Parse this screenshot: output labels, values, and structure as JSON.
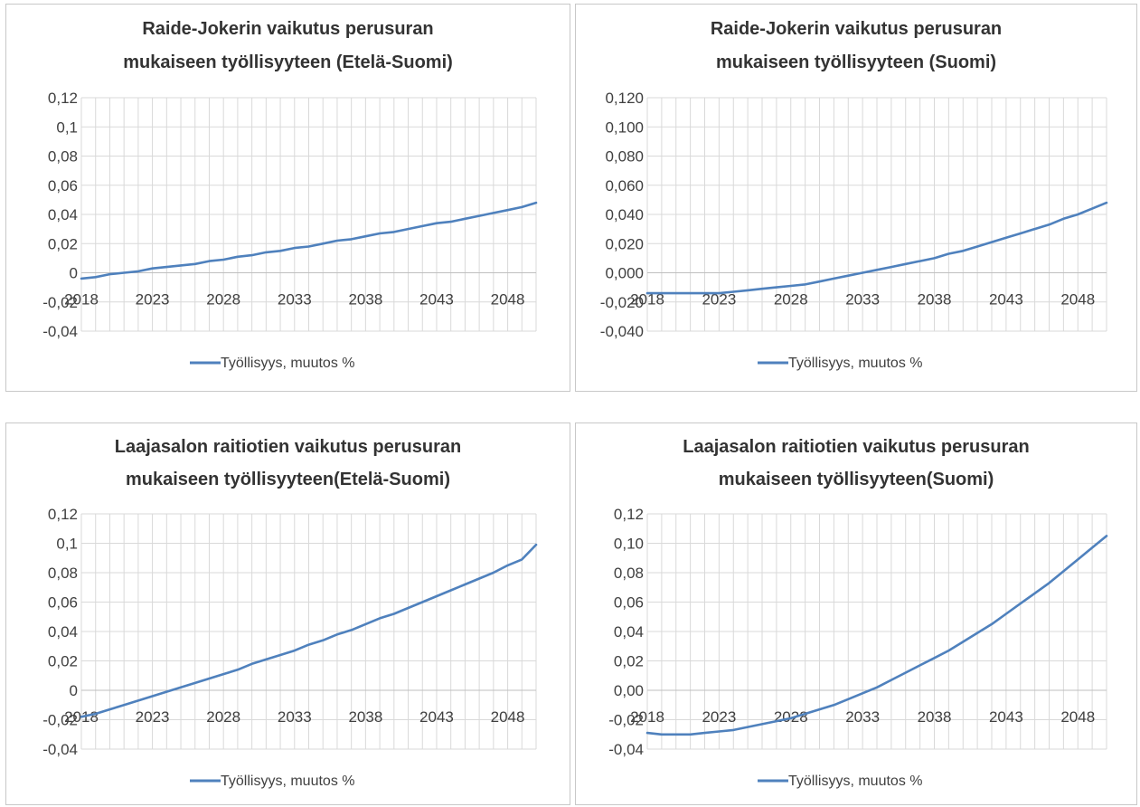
{
  "style": {
    "line_color": "#4f81bd",
    "grid_color": "#d9d9d9",
    "text_color": "#404040",
    "background": "#ffffff"
  },
  "chart_data": [
    {
      "type": "line",
      "title_lines": [
        "Raide-Jokerin vaikutus perusuran",
        "mukaiseen työllisyyteen  (Etelä-Suomi)"
      ],
      "x": [
        2018,
        2019,
        2020,
        2021,
        2022,
        2023,
        2024,
        2025,
        2026,
        2027,
        2028,
        2029,
        2030,
        2031,
        2032,
        2033,
        2034,
        2035,
        2036,
        2037,
        2038,
        2039,
        2040,
        2041,
        2042,
        2043,
        2044,
        2045,
        2046,
        2047,
        2048,
        2049,
        2050
      ],
      "x_tick_labels": [
        "2018",
        "2023",
        "2028",
        "2033",
        "2038",
        "2043",
        "2048"
      ],
      "x_tick_values": [
        2018,
        2023,
        2028,
        2033,
        2038,
        2043,
        2048
      ],
      "y_tick_labels": [
        "0,12",
        "0,1",
        "0,08",
        "0,06",
        "0,04",
        "0,02",
        "0",
        "-0,02",
        "-0,04"
      ],
      "ylim": [
        -0.04,
        0.12
      ],
      "y_step": 0.02,
      "series": [
        {
          "name": "Työllisyys, muutos %",
          "values": [
            -0.004,
            -0.003,
            -0.001,
            0.0,
            0.001,
            0.003,
            0.004,
            0.005,
            0.006,
            0.008,
            0.009,
            0.011,
            0.012,
            0.014,
            0.015,
            0.017,
            0.018,
            0.02,
            0.022,
            0.023,
            0.025,
            0.027,
            0.028,
            0.03,
            0.032,
            0.034,
            0.035,
            0.037,
            0.039,
            0.041,
            0.043,
            0.045,
            0.048
          ]
        }
      ],
      "legend": "bottom",
      "grid": true
    },
    {
      "type": "line",
      "title_lines": [
        "Raide-Jokerin vaikutus perusuran",
        "mukaiseen työllisyyteen  (Suomi)"
      ],
      "x": [
        2018,
        2019,
        2020,
        2021,
        2022,
        2023,
        2024,
        2025,
        2026,
        2027,
        2028,
        2029,
        2030,
        2031,
        2032,
        2033,
        2034,
        2035,
        2036,
        2037,
        2038,
        2039,
        2040,
        2041,
        2042,
        2043,
        2044,
        2045,
        2046,
        2047,
        2048,
        2049,
        2050
      ],
      "x_tick_labels": [
        "2018",
        "2023",
        "2028",
        "2033",
        "2038",
        "2043",
        "2048"
      ],
      "x_tick_values": [
        2018,
        2023,
        2028,
        2033,
        2038,
        2043,
        2048
      ],
      "y_tick_labels": [
        "0,120",
        "0,100",
        "0,080",
        "0,060",
        "0,040",
        "0,020",
        "0,000",
        "-0,020",
        "-0,040"
      ],
      "ylim": [
        -0.04,
        0.12
      ],
      "y_step": 0.02,
      "series": [
        {
          "name": "Työllisyys, muutos %",
          "values": [
            -0.014,
            -0.014,
            -0.014,
            -0.014,
            -0.014,
            -0.014,
            -0.013,
            -0.012,
            -0.011,
            -0.01,
            -0.009,
            -0.008,
            -0.006,
            -0.004,
            -0.002,
            0.0,
            0.002,
            0.004,
            0.006,
            0.008,
            0.01,
            0.013,
            0.015,
            0.018,
            0.021,
            0.024,
            0.027,
            0.03,
            0.033,
            0.037,
            0.04,
            0.044,
            0.048
          ]
        }
      ],
      "legend": "bottom",
      "grid": true
    },
    {
      "type": "line",
      "title_lines": [
        "Laajasalon raitiotien vaikutus perusuran",
        "mukaiseen työllisyyteen(Etelä-Suomi)"
      ],
      "x": [
        2018,
        2019,
        2020,
        2021,
        2022,
        2023,
        2024,
        2025,
        2026,
        2027,
        2028,
        2029,
        2030,
        2031,
        2032,
        2033,
        2034,
        2035,
        2036,
        2037,
        2038,
        2039,
        2040,
        2041,
        2042,
        2043,
        2044,
        2045,
        2046,
        2047,
        2048,
        2049,
        2050
      ],
      "x_tick_labels": [
        "2018",
        "2023",
        "2028",
        "2033",
        "2038",
        "2043",
        "2048"
      ],
      "x_tick_values": [
        2018,
        2023,
        2028,
        2033,
        2038,
        2043,
        2048
      ],
      "y_tick_labels": [
        "0,12",
        "0,1",
        "0,08",
        "0,06",
        "0,04",
        "0,02",
        "0",
        "-0,02",
        "-0,04"
      ],
      "ylim": [
        -0.04,
        0.12
      ],
      "y_step": 0.02,
      "series": [
        {
          "name": "Työllisyys, muutos %",
          "values": [
            -0.018,
            -0.016,
            -0.013,
            -0.01,
            -0.007,
            -0.004,
            -0.001,
            0.002,
            0.005,
            0.008,
            0.011,
            0.014,
            0.018,
            0.021,
            0.024,
            0.027,
            0.031,
            0.034,
            0.038,
            0.041,
            0.045,
            0.049,
            0.052,
            0.056,
            0.06,
            0.064,
            0.068,
            0.072,
            0.076,
            0.08,
            0.085,
            0.089,
            0.099
          ]
        }
      ],
      "legend": "bottom",
      "grid": true
    },
    {
      "type": "line",
      "title_lines": [
        "Laajasalon raitiotien vaikutus perusuran",
        "mukaiseen työllisyyteen(Suomi)"
      ],
      "x": [
        2018,
        2019,
        2020,
        2021,
        2022,
        2023,
        2024,
        2025,
        2026,
        2027,
        2028,
        2029,
        2030,
        2031,
        2032,
        2033,
        2034,
        2035,
        2036,
        2037,
        2038,
        2039,
        2040,
        2041,
        2042,
        2043,
        2044,
        2045,
        2046,
        2047,
        2048,
        2049,
        2050
      ],
      "x_tick_labels": [
        "2018",
        "2023",
        "2028",
        "2033",
        "2038",
        "2043",
        "2048"
      ],
      "x_tick_values": [
        2018,
        2023,
        2028,
        2033,
        2038,
        2043,
        2048
      ],
      "y_tick_labels": [
        "0,12",
        "0,10",
        "0,08",
        "0,06",
        "0,04",
        "0,02",
        "0,00",
        "-0,02",
        "-0,04"
      ],
      "ylim": [
        -0.04,
        0.12
      ],
      "y_step": 0.02,
      "series": [
        {
          "name": "Työllisyys, muutos %",
          "values": [
            -0.029,
            -0.03,
            -0.03,
            -0.03,
            -0.029,
            -0.028,
            -0.027,
            -0.025,
            -0.023,
            -0.021,
            -0.019,
            -0.016,
            -0.013,
            -0.01,
            -0.006,
            -0.002,
            0.002,
            0.007,
            0.012,
            0.017,
            0.022,
            0.027,
            0.033,
            0.039,
            0.045,
            0.052,
            0.059,
            0.066,
            0.073,
            0.081,
            0.089,
            0.097,
            0.105
          ]
        }
      ],
      "legend": "bottom",
      "grid": true
    }
  ]
}
